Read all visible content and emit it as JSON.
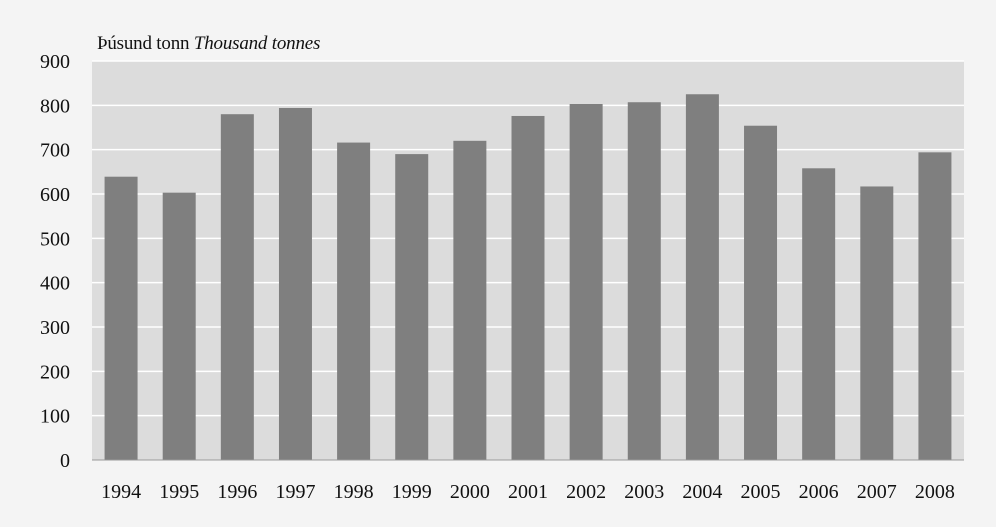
{
  "chart_data": {
    "type": "bar",
    "title": "",
    "unit_label_is": "Þúsund tonn",
    "unit_label_en": "Thousand tonnes",
    "xlabel": "",
    "ylabel": "",
    "categories": [
      "1994",
      "1995",
      "1996",
      "1997",
      "1998",
      "1999",
      "2000",
      "2001",
      "2002",
      "2003",
      "2004",
      "2005",
      "2006",
      "2007",
      "2008"
    ],
    "values": [
      639,
      603,
      780,
      794,
      716,
      690,
      720,
      776,
      803,
      807,
      825,
      754,
      658,
      617,
      694
    ],
    "ylim": [
      0,
      900
    ],
    "yticks": [
      0,
      100,
      200,
      300,
      400,
      500,
      600,
      700,
      800,
      900
    ],
    "grid": true,
    "legend": "none",
    "colors": {
      "bar": "#7f7f7f",
      "plot_background": "#dcdcdc",
      "page_background": "#f4f4f4",
      "gridline": "#ffffff"
    }
  }
}
